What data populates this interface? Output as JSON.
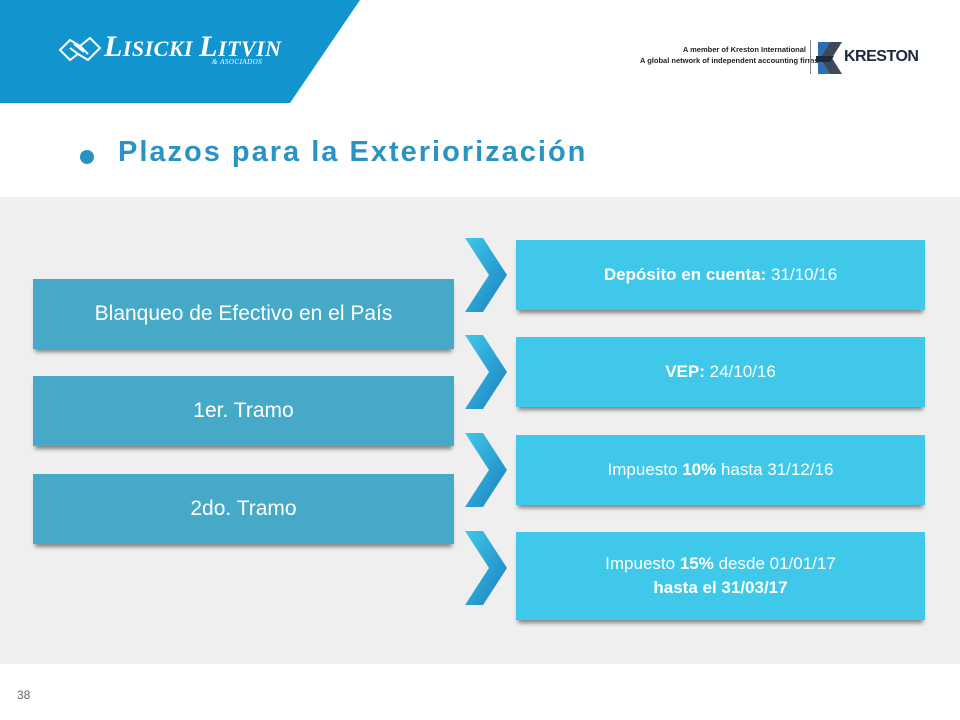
{
  "header": {
    "brand_first_initial": "L",
    "brand_first_rest": "ISICKI",
    "brand_second_initial": "L",
    "brand_second_rest": "ITVIN",
    "brand_sub": "& ASOCIADOS",
    "member_line1": "A member of Kreston International",
    "member_line2": "A global network of independent accounting firms",
    "kreston_name": "KRESTON",
    "band_color": "#1295cf"
  },
  "title": "Plazos para la Exteriorización",
  "left_boxes": [
    {
      "label": "Blanqueo de Efectivo en el País"
    },
    {
      "label": "1er. Tramo"
    },
    {
      "label": "2do. Tramo"
    }
  ],
  "right_boxes": [
    {
      "bold": "Depósito en cuenta:",
      "text": " 31/10/16"
    },
    {
      "bold": "VEP:",
      "text": " 24/10/16"
    },
    {
      "pre": "Impuesto ",
      "bold": "10%",
      "text": " hasta 31/12/16"
    },
    {
      "pre": "Impuesto ",
      "bold": "15%",
      "text": " desde 01/01/17",
      "line2": "hasta el 31/03/17"
    }
  ],
  "page_number": "38"
}
